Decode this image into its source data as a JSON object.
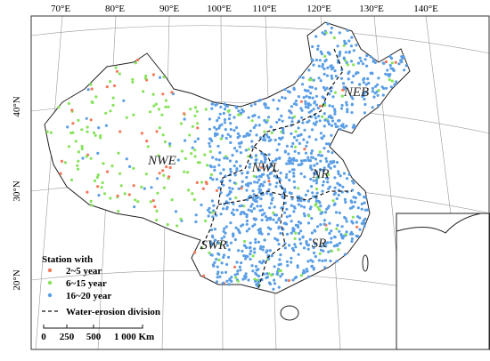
{
  "map": {
    "longitude_labels": [
      "70°E",
      "80°E",
      "90°E",
      "100°E",
      "110°E",
      "120°E",
      "130°E",
      "140°E"
    ],
    "latitude_labels": [
      "40°N",
      "30°N",
      "20°N"
    ],
    "regions": [
      "NEB",
      "NWE",
      "NWL",
      "NR",
      "SWR",
      "SR"
    ],
    "legend": {
      "title": "Station with",
      "items": [
        {
          "label": "2~5 year",
          "color": "#f4795a"
        },
        {
          "label": "6~15 year",
          "color": "#86e35a"
        },
        {
          "label": "16~20 year",
          "color": "#5a9ee6"
        }
      ],
      "division": "Water-erosion division"
    },
    "scale_bar": {
      "labels": [
        "0",
        "250",
        "500",
        "1 000 Km"
      ]
    }
  }
}
